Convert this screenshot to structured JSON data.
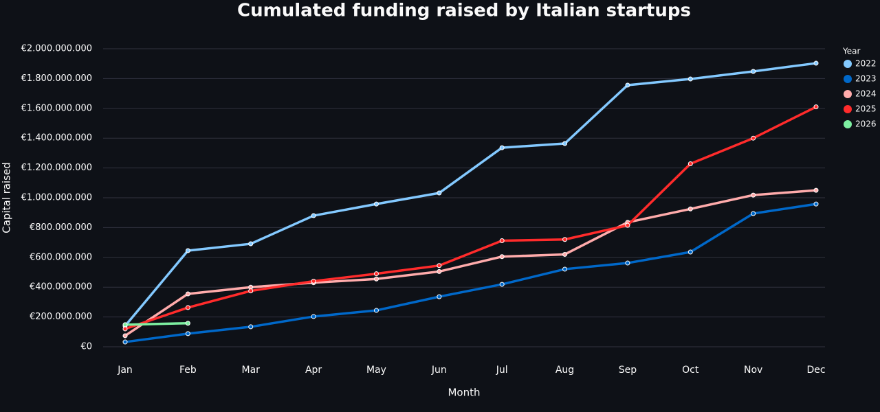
{
  "chart_data": {
    "type": "line",
    "title": "Cumulated funding raised by Italian startups",
    "x_label": "Month",
    "y_label": "Capital raised",
    "legend_title": "Year",
    "legend": "right",
    "grid": true,
    "categories": [
      "Jan",
      "Feb",
      "Mar",
      "Apr",
      "May",
      "Jun",
      "Jul",
      "Aug",
      "Sep",
      "Oct",
      "Nov",
      "Dec"
    ],
    "ylim": [
      0,
      2000000000
    ],
    "yticks": [
      {
        "value": 0,
        "label": "€0"
      },
      {
        "value": 200000000,
        "label": "€200.000.000"
      },
      {
        "value": 400000000,
        "label": "€400.000.000"
      },
      {
        "value": 600000000,
        "label": "€600.000.000"
      },
      {
        "value": 800000000,
        "label": "€800.000.000"
      },
      {
        "value": 1000000000,
        "label": "€1.000.000.000"
      },
      {
        "value": 1200000000,
        "label": "€1.200.000.000"
      },
      {
        "value": 1400000000,
        "label": "€1.400.000.000"
      },
      {
        "value": 1600000000,
        "label": "€1.600.000.000"
      },
      {
        "value": 1800000000,
        "label": "€1.800.000.000"
      },
      {
        "value": 2000000000,
        "label": "€2.000.000.000"
      }
    ],
    "series": [
      {
        "name": "2022",
        "color": "#83c9ff",
        "values": [
          140000000,
          645000000,
          691000000,
          880000000,
          958000000,
          1032000000,
          1336000000,
          1364000000,
          1756000000,
          1797000000,
          1848000000,
          1903000000
        ]
      },
      {
        "name": "2023",
        "color": "#0068c9",
        "values": [
          32000000,
          88000000,
          134000000,
          203000000,
          244000000,
          336000000,
          419000000,
          521000000,
          562000000,
          636000000,
          894000000,
          958000000
        ]
      },
      {
        "name": "2024",
        "color": "#ffabab",
        "values": [
          74000000,
          355000000,
          400000000,
          430000000,
          455000000,
          505000000,
          605000000,
          620000000,
          835000000,
          925000000,
          1018000000,
          1050000000
        ]
      },
      {
        "name": "2025",
        "color": "#ff2b2b",
        "values": [
          120000000,
          263000000,
          375000000,
          440000000,
          490000000,
          545000000,
          712000000,
          720000000,
          815000000,
          1228000000,
          1400000000,
          1610000000
        ]
      },
      {
        "name": "2026",
        "color": "#7defa1",
        "values": [
          148000000,
          158000000,
          null,
          null,
          null,
          null,
          null,
          null,
          null,
          null,
          null,
          null
        ]
      }
    ]
  }
}
